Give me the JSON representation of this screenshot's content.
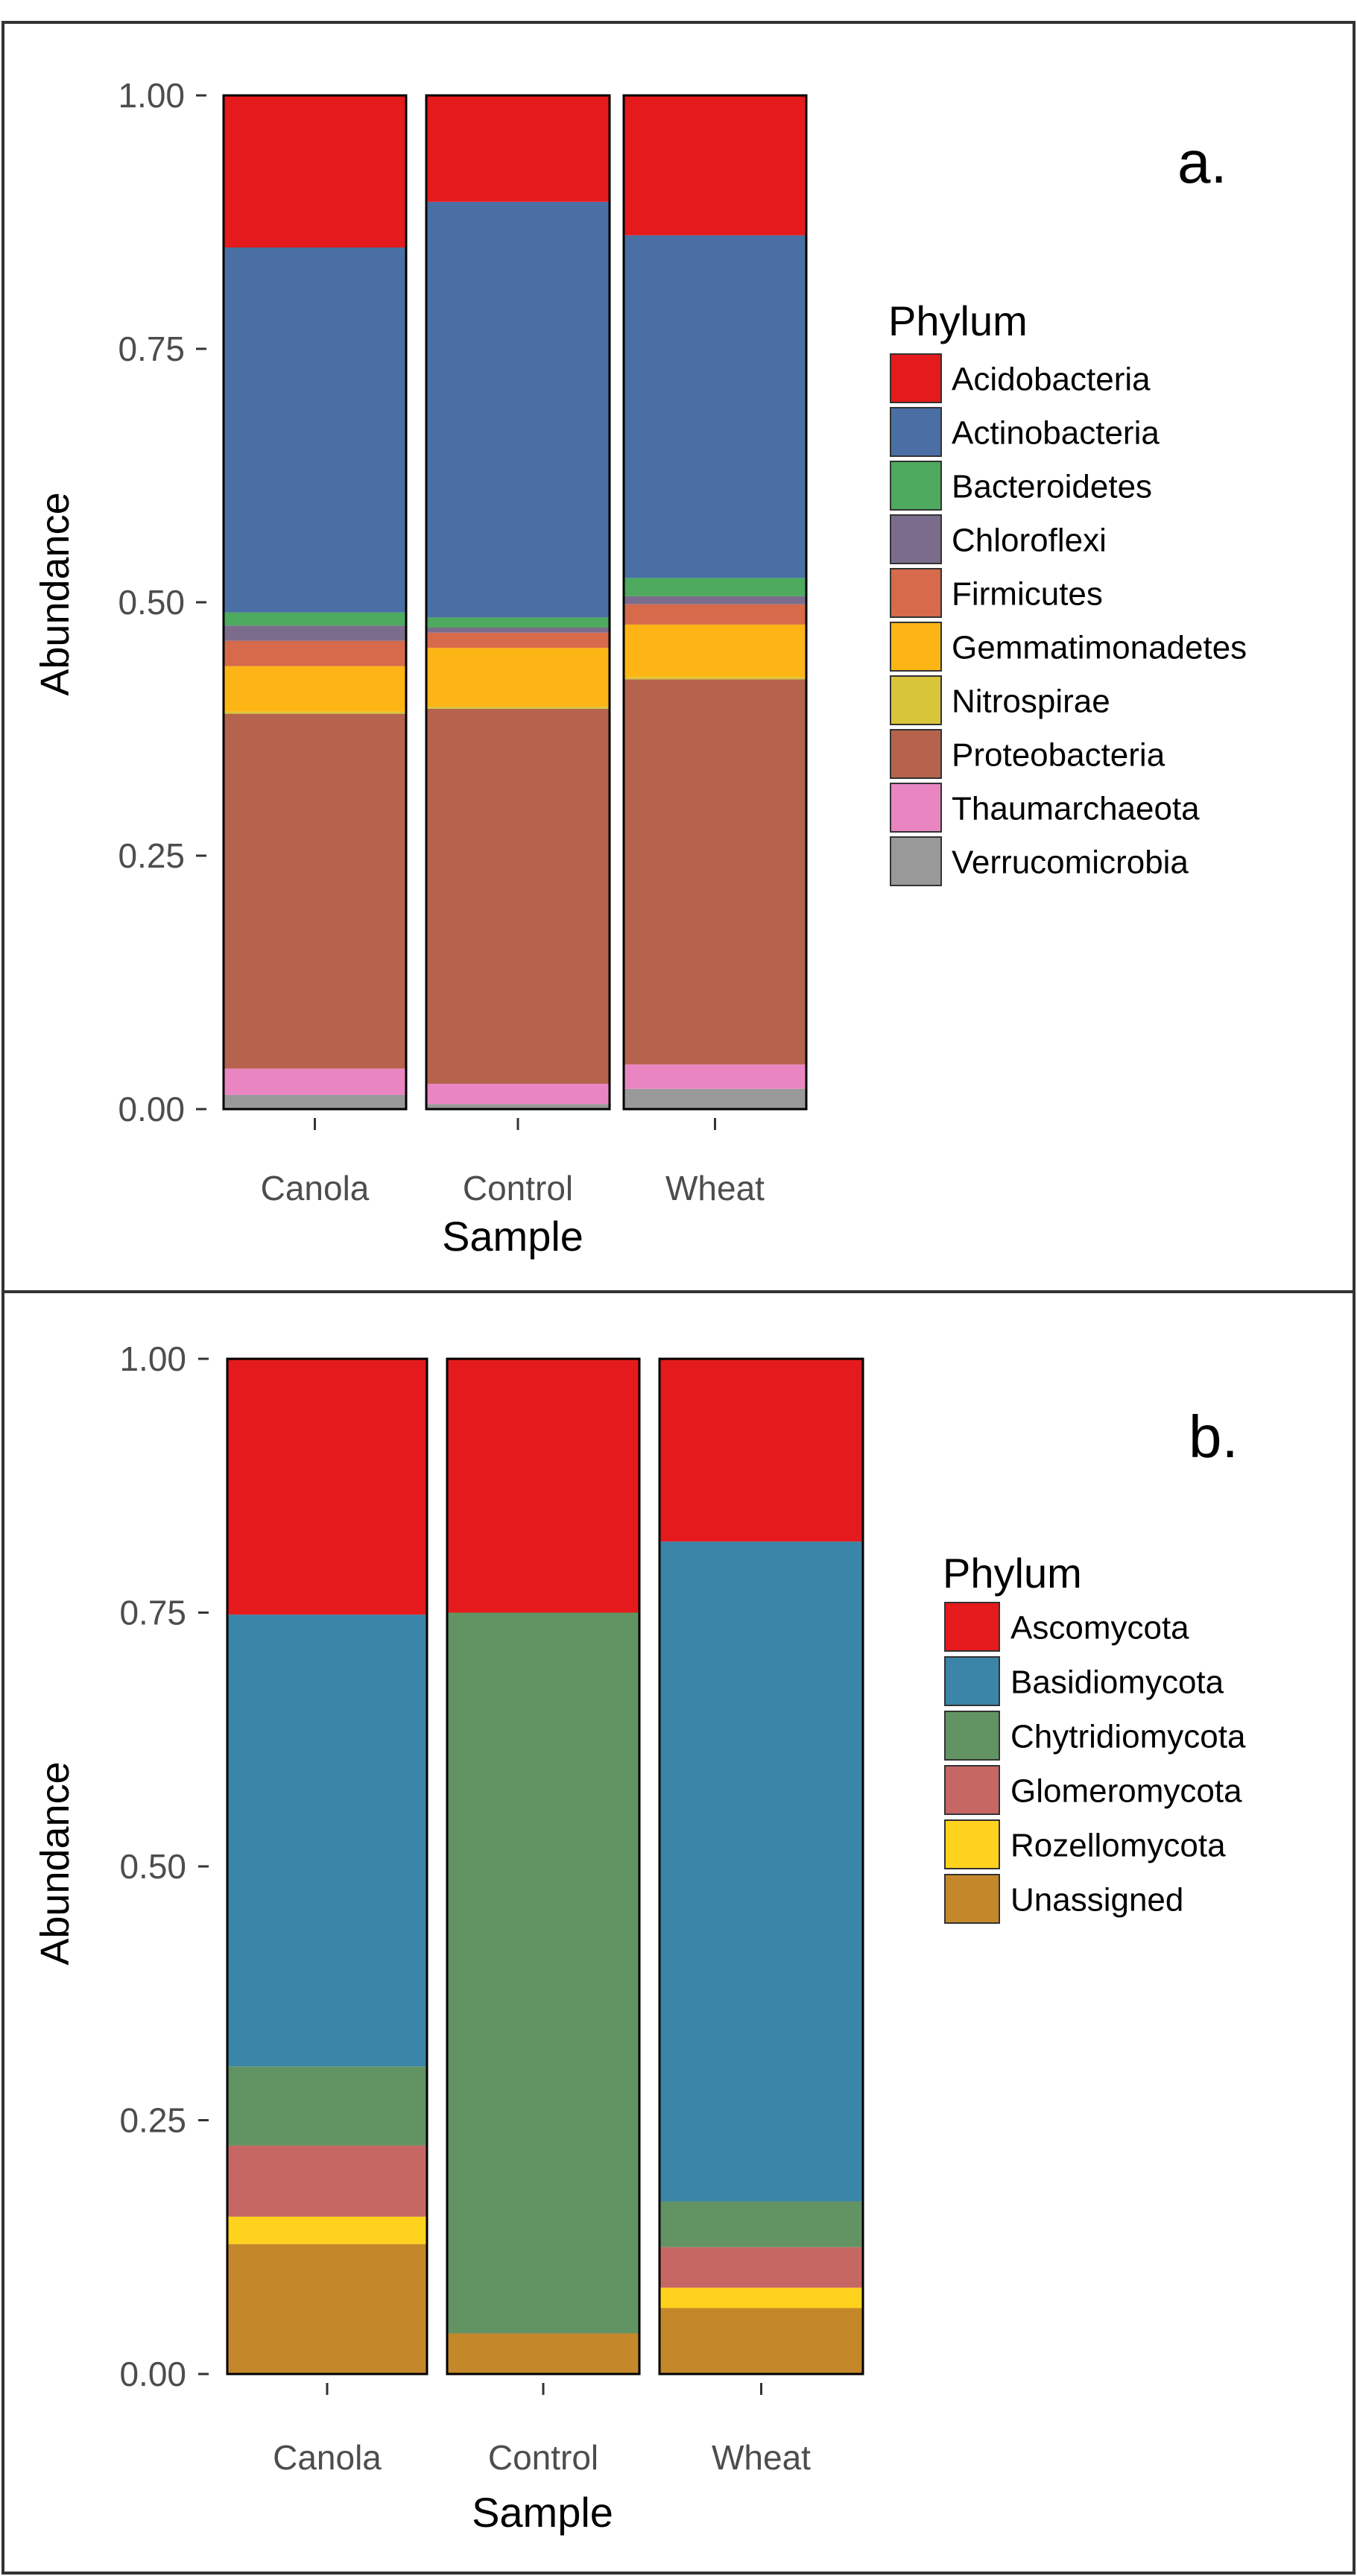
{
  "chart_data": [
    {
      "type": "bar",
      "stacked": true,
      "panel_label": "a.",
      "categories": [
        "Canola",
        "Control",
        "Wheat"
      ],
      "xlabel": "Sample",
      "ylabel": "Abundance",
      "ylim": [
        0,
        1
      ],
      "yticks": [
        "0.00",
        "0.25",
        "0.50",
        "0.75",
        "1.00"
      ],
      "legend_title": "Phylum",
      "legend_position": "right",
      "series": [
        {
          "name": "Acidobacteria",
          "color": "#E41A1C",
          "values": [
            0.15,
            0.105,
            0.138
          ]
        },
        {
          "name": "Actinobacteria",
          "color": "#4A6FA5",
          "values": [
            0.36,
            0.41,
            0.338
          ]
        },
        {
          "name": "Bacteroidetes",
          "color": "#4DAA5E",
          "values": [
            0.013,
            0.01,
            0.018
          ]
        },
        {
          "name": "Chloroflexi",
          "color": "#7C6C8C",
          "values": [
            0.015,
            0.005,
            0.008
          ]
        },
        {
          "name": "Firmicutes",
          "color": "#D66A4A",
          "values": [
            0.025,
            0.015,
            0.02
          ]
        },
        {
          "name": "Gemmatimonadetes",
          "color": "#FDB515",
          "values": [
            0.045,
            0.058,
            0.052
          ]
        },
        {
          "name": "Nitrospirae",
          "color": "#D8C53A",
          "values": [
            0.002,
            0.002,
            0.002
          ]
        },
        {
          "name": "Proteobacteria",
          "color": "#B5634D",
          "values": [
            0.35,
            0.37,
            0.38
          ]
        },
        {
          "name": "Thaumarchaeota",
          "color": "#E986C2",
          "values": [
            0.026,
            0.02,
            0.024
          ]
        },
        {
          "name": "Verrucomicrobia",
          "color": "#999999",
          "values": [
            0.014,
            0.005,
            0.02
          ]
        }
      ]
    },
    {
      "type": "bar",
      "stacked": true,
      "panel_label": "b.",
      "categories": [
        "Canola",
        "Control",
        "Wheat"
      ],
      "xlabel": "Sample",
      "ylabel": "Abundance",
      "ylim": [
        0,
        1
      ],
      "yticks": [
        "0.00",
        "0.25",
        "0.50",
        "0.75",
        "1.00"
      ],
      "legend_title": "Phylum",
      "legend_position": "right",
      "series": [
        {
          "name": "Ascomycota",
          "color": "#E41A1C",
          "values": [
            0.252,
            0.25,
            0.18
          ]
        },
        {
          "name": "Basidiomycota",
          "color": "#3A85A8",
          "values": [
            0.445,
            0.0,
            0.65
          ]
        },
        {
          "name": "Chytridiomycota",
          "color": "#629363",
          "values": [
            0.078,
            0.71,
            0.045
          ]
        },
        {
          "name": "Glomeromycota",
          "color": "#C66764",
          "values": [
            0.07,
            0.0,
            0.04
          ]
        },
        {
          "name": "Rozellomycota",
          "color": "#FFD31D",
          "values": [
            0.027,
            0.0,
            0.02
          ]
        },
        {
          "name": "Unassigned",
          "color": "#C4882B",
          "values": [
            0.128,
            0.04,
            0.065
          ]
        }
      ]
    }
  ]
}
